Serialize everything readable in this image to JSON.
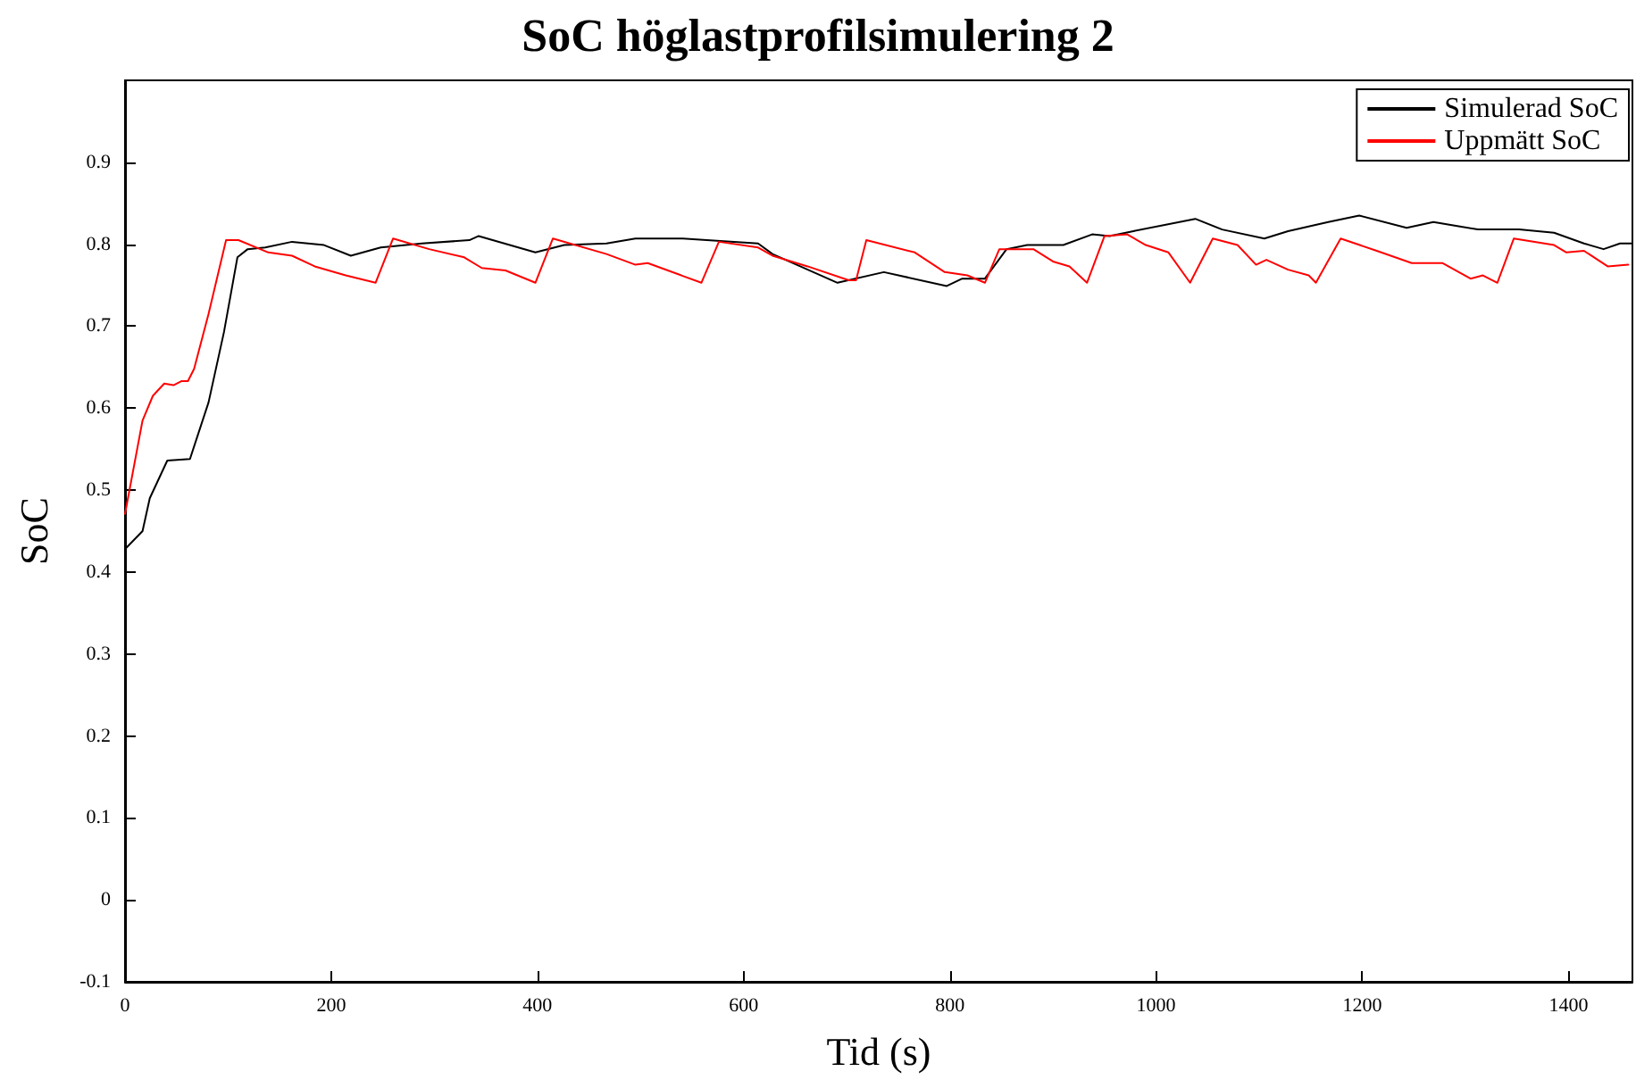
{
  "chart_data": {
    "type": "line",
    "title": "SoC höglastprofilsimulering 2",
    "xlabel": "Tid (s)",
    "ylabel": "SoC",
    "xlim": [
      0,
      1462
    ],
    "xticks": [
      0,
      200,
      400,
      600,
      800,
      1000,
      1200,
      1400
    ],
    "ylim": [
      -0.1,
      1
    ],
    "yticks": [
      -0.1,
      0,
      0.1,
      0.2,
      0.3,
      0.4,
      0.5,
      0.6,
      0.7,
      0.8,
      0.9
    ],
    "legend": "top right",
    "grid": false,
    "marker": "none",
    "line_style": "solid",
    "series": [
      {
        "name": "Simulerad SoC",
        "color": "#000000",
        "x": [
          0,
          17,
          24,
          41,
          63,
          81,
          96,
          109,
          119,
          136,
          162,
          193,
          219,
          248,
          288,
          334,
          343,
          398,
          426,
          467,
          495,
          541,
          614,
          628,
          691,
          736,
          797,
          812,
          834,
          855,
          875,
          910,
          938,
          955,
          978,
          1038,
          1064,
          1105,
          1128,
          1167,
          1197,
          1243,
          1269,
          1312,
          1352,
          1386,
          1415,
          1434,
          1450,
          1462
        ],
        "values": [
          0.428,
          0.45,
          0.49,
          0.536,
          0.538,
          0.607,
          0.693,
          0.784,
          0.794,
          0.796,
          0.803,
          0.799,
          0.786,
          0.796,
          0.801,
          0.805,
          0.81,
          0.79,
          0.799,
          0.801,
          0.807,
          0.807,
          0.801,
          0.788,
          0.753,
          0.766,
          0.749,
          0.758,
          0.758,
          0.794,
          0.799,
          0.799,
          0.812,
          0.81,
          0.816,
          0.831,
          0.818,
          0.807,
          0.816,
          0.827,
          0.835,
          0.82,
          0.827,
          0.818,
          0.818,
          0.814,
          0.801,
          0.794,
          0.801,
          0.801
        ]
      },
      {
        "name": "Uppmätt SoC",
        "color": "#ff0000",
        "x": [
          0,
          17,
          27,
          38,
          47,
          55,
          61,
          67,
          81,
          98,
          110,
          139,
          162,
          184,
          214,
          243,
          260,
          295,
          329,
          346,
          369,
          398,
          415,
          467,
          495,
          507,
          559,
          576,
          614,
          628,
          662,
          702,
          709,
          719,
          766,
          795,
          817,
          834,
          848,
          881,
          900,
          916,
          933,
          950,
          972,
          990,
          1012,
          1033,
          1055,
          1079,
          1097,
          1107,
          1128,
          1148,
          1155,
          1179,
          1214,
          1248,
          1278,
          1305,
          1317,
          1331,
          1347,
          1386,
          1398,
          1415,
          1438,
          1458
        ],
        "values": [
          0.471,
          0.585,
          0.615,
          0.63,
          0.628,
          0.633,
          0.633,
          0.648,
          0.715,
          0.805,
          0.805,
          0.79,
          0.786,
          0.773,
          0.762,
          0.753,
          0.807,
          0.794,
          0.784,
          0.771,
          0.768,
          0.753,
          0.807,
          0.788,
          0.775,
          0.777,
          0.753,
          0.803,
          0.796,
          0.786,
          0.773,
          0.756,
          0.756,
          0.805,
          0.79,
          0.766,
          0.762,
          0.753,
          0.794,
          0.794,
          0.779,
          0.773,
          0.753,
          0.81,
          0.812,
          0.799,
          0.79,
          0.753,
          0.807,
          0.799,
          0.775,
          0.781,
          0.769,
          0.762,
          0.753,
          0.807,
          0.792,
          0.777,
          0.777,
          0.758,
          0.762,
          0.753,
          0.807,
          0.799,
          0.79,
          0.792,
          0.773,
          0.775
        ]
      }
    ]
  }
}
